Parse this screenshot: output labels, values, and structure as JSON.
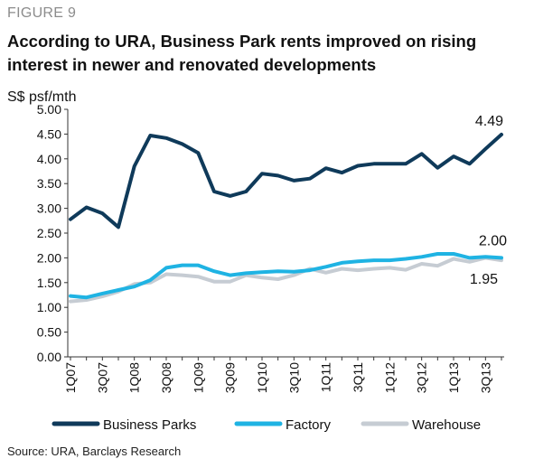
{
  "figure_label": "FIGURE 9",
  "title": "According to URA, Business Park rents improved on rising interest in newer and renovated developments",
  "source": "Source: URA, Barclays Research",
  "chart_data": {
    "type": "line",
    "ylabel": "S$ psf/mth",
    "ylim": [
      0,
      5
    ],
    "yticks": [
      "0.00",
      "0.50",
      "1.00",
      "1.50",
      "2.00",
      "2.50",
      "3.00",
      "3.50",
      "4.00",
      "4.50",
      "5.00"
    ],
    "x": [
      "1Q07",
      "2Q07",
      "3Q07",
      "4Q07",
      "1Q08",
      "2Q08",
      "3Q08",
      "4Q08",
      "1Q09",
      "2Q09",
      "3Q09",
      "4Q09",
      "1Q10",
      "2Q10",
      "3Q10",
      "4Q10",
      "1Q11",
      "2Q11",
      "3Q11",
      "4Q11",
      "1Q12",
      "2Q12",
      "3Q12",
      "4Q12",
      "1Q13",
      "2Q13",
      "3Q13",
      "4Q13"
    ],
    "xtick_labels": [
      "1Q07",
      "3Q07",
      "1Q08",
      "3Q08",
      "1Q09",
      "3Q09",
      "1Q10",
      "3Q10",
      "1Q11",
      "3Q11",
      "1Q12",
      "3Q12",
      "1Q13",
      "3Q13"
    ],
    "grid": false,
    "legend_position": "bottom",
    "series": [
      {
        "name": "Business Parks",
        "color": "#0f3a5a",
        "values": [
          2.78,
          3.02,
          2.9,
          2.62,
          3.85,
          4.47,
          4.42,
          4.3,
          4.12,
          3.34,
          3.25,
          3.34,
          3.7,
          3.66,
          3.56,
          3.6,
          3.81,
          3.72,
          3.86,
          3.9,
          3.9,
          3.9,
          4.1,
          3.82,
          4.05,
          3.9,
          4.2,
          4.49
        ]
      },
      {
        "name": "Factory",
        "color": "#1fb3e3",
        "values": [
          1.23,
          1.2,
          1.28,
          1.35,
          1.42,
          1.55,
          1.8,
          1.85,
          1.85,
          1.73,
          1.65,
          1.69,
          1.71,
          1.73,
          1.72,
          1.75,
          1.82,
          1.9,
          1.93,
          1.95,
          1.95,
          1.98,
          2.02,
          2.08,
          2.08,
          2.0,
          2.02,
          2.0
        ]
      },
      {
        "name": "Warehouse",
        "color": "#c6ccd3",
        "values": [
          1.12,
          1.15,
          1.22,
          1.32,
          1.47,
          1.5,
          1.67,
          1.65,
          1.62,
          1.52,
          1.52,
          1.65,
          1.6,
          1.57,
          1.65,
          1.78,
          1.7,
          1.78,
          1.75,
          1.78,
          1.8,
          1.76,
          1.88,
          1.84,
          1.98,
          1.92,
          2.0,
          1.95
        ]
      }
    ],
    "annotations": [
      "4.49",
      "2.00",
      "1.95"
    ]
  }
}
